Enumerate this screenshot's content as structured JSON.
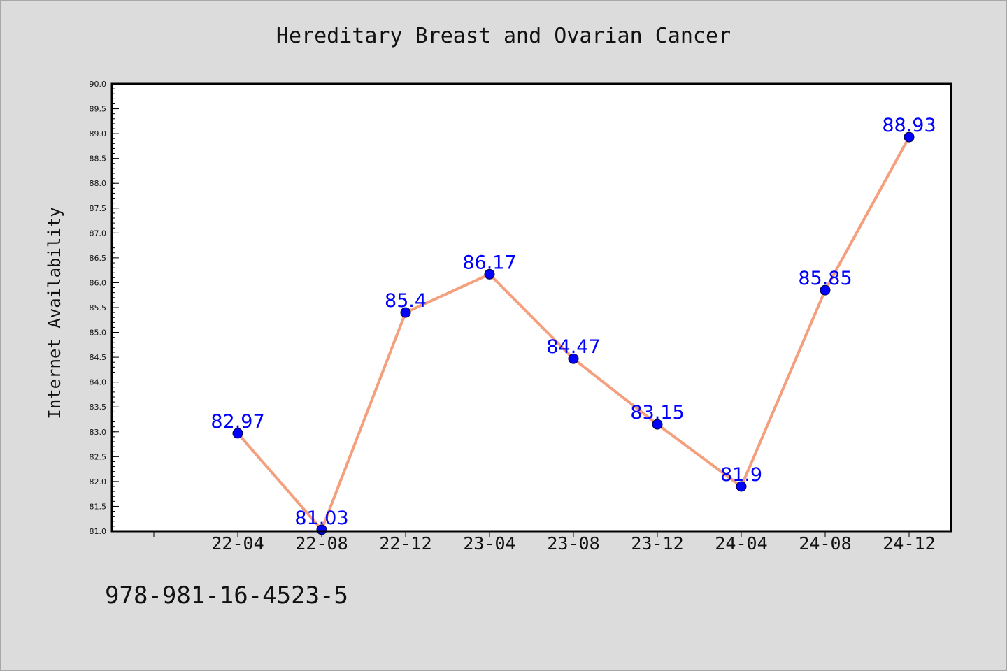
{
  "chart_data": {
    "type": "line",
    "title": "Hereditary Breast and Ovarian Cancer",
    "xlabel": "",
    "ylabel": "Internet Availability",
    "categories": [
      "22-04",
      "22-08",
      "22-12",
      "23-04",
      "23-08",
      "23-12",
      "24-04",
      "24-08",
      "24-12"
    ],
    "series": [
      {
        "values": [
          82.97,
          81.03,
          85.4,
          86.17,
          84.47,
          83.15,
          81.9,
          85.85,
          88.93
        ],
        "data_labels": [
          "82.97",
          "81.03",
          "85.4",
          "86.17",
          "84.47",
          "83.15",
          "81.9",
          "85.85",
          "88.93"
        ],
        "line_color": "#f4a07e",
        "marker_color": "#0000ff"
      }
    ],
    "ylim": [
      81.0,
      90.0
    ],
    "yticks": [
      "81.0",
      "81.5",
      "82.0",
      "82.5",
      "83.0",
      "83.5",
      "84.0",
      "84.5",
      "85.0",
      "85.5",
      "86.0",
      "86.5",
      "87.0",
      "87.5",
      "88.0",
      "88.5",
      "89.0",
      "89.5",
      "90.0"
    ],
    "grid": false,
    "legend": "none",
    "label_color": "#0000ff",
    "background_color": "#dcdcdc",
    "plot_background_color": "#ffffff"
  },
  "footer": {
    "code": "978-981-16-4523-5"
  }
}
